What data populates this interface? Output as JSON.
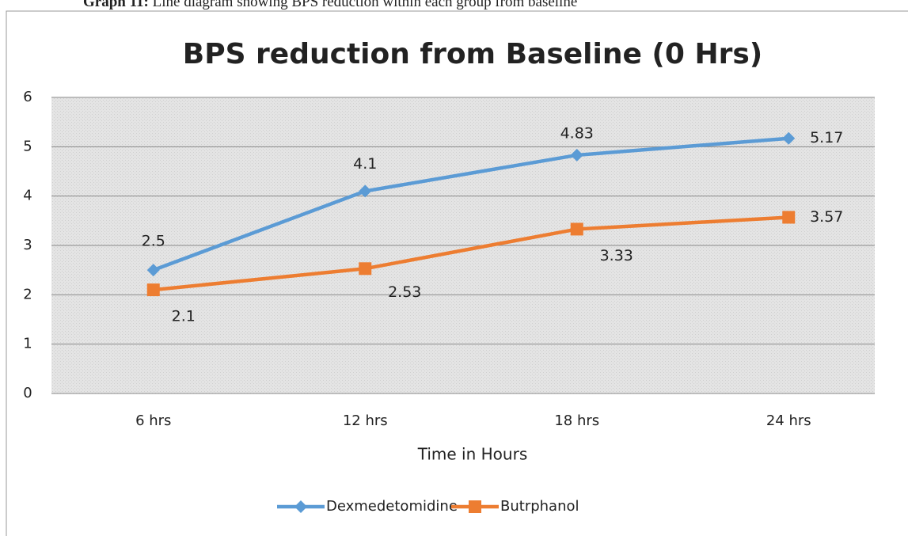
{
  "caption": {
    "label": "Graph 11:",
    "text": "Line diagram showing BPS reduction within each group from baseline"
  },
  "chart_data": {
    "type": "line",
    "title": "BPS reduction from Baseline (0 Hrs)",
    "x_label": "Time in Hours",
    "categories": [
      "6 hrs",
      "12 hrs",
      "18 hrs",
      "24 hrs"
    ],
    "series": [
      {
        "name": "Dexmedetomidine",
        "color": "#5b9bd5",
        "marker": "diamond",
        "values": [
          2.5,
          4.1,
          4.83,
          5.17
        ]
      },
      {
        "name": "Butrphanol",
        "color": "#ed7d31",
        "marker": "square",
        "values": [
          2.1,
          2.53,
          3.33,
          3.57
        ]
      }
    ],
    "ylim": [
      0,
      6
    ],
    "yticks": [
      0,
      1,
      2,
      3,
      4,
      5,
      6
    ],
    "grid": true,
    "legend": "bottom"
  }
}
